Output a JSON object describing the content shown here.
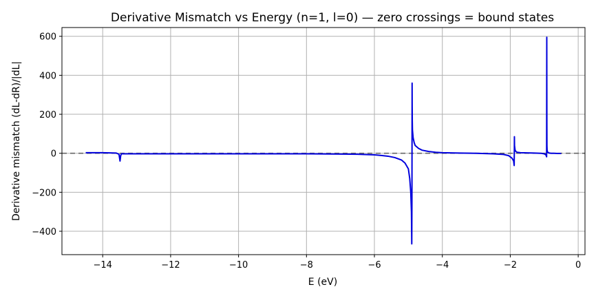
{
  "chart_data": {
    "type": "line",
    "title": "Derivative Mismatch vs Energy (n=1, l=0) — zero crossings = bound states",
    "xlabel": "E (eV)",
    "ylabel": "Derivative mismatch (dL-dR)/|dL|",
    "xlim": [
      -15.2,
      0.2
    ],
    "ylim": [
      -520,
      645
    ],
    "xticks": [
      -14,
      -12,
      -10,
      -8,
      -6,
      -4,
      -2,
      0
    ],
    "xtick_labels": [
      "−14",
      "−12",
      "−10",
      "−8",
      "−6",
      "−4",
      "−2",
      "0"
    ],
    "yticks": [
      -400,
      -200,
      0,
      200,
      400,
      600
    ],
    "ytick_labels": [
      "−400",
      "−200",
      "0",
      "200",
      "400",
      "600"
    ],
    "grid": true,
    "reference_line": {
      "y": 0,
      "style": "dashed",
      "color": "#666666"
    },
    "series": [
      {
        "color": "#0000dd",
        "x": [
          -14.5,
          -14.2,
          -14.0,
          -13.8,
          -13.6,
          -13.52,
          -13.49,
          -13.47,
          -13.45,
          -13.4,
          -13.2,
          -13.0,
          -12.0,
          -11.0,
          -10.0,
          -9.0,
          -8.0,
          -7.0,
          -6.5,
          -6.0,
          -5.8,
          -5.6,
          -5.4,
          -5.2,
          -5.1,
          -5.0,
          -4.96,
          -4.93,
          -4.91,
          -4.9,
          -4.895,
          -4.892,
          -4.89,
          -4.888,
          -4.885,
          -4.88,
          -4.86,
          -4.83,
          -4.8,
          -4.7,
          -4.6,
          -4.4,
          -4.2,
          -4.0,
          -3.5,
          -3.0,
          -2.5,
          -2.2,
          -2.05,
          -1.95,
          -1.9,
          -1.885,
          -1.88,
          -1.878,
          -1.875,
          -1.86,
          -1.84,
          -1.8,
          -1.7,
          -1.5,
          -1.3,
          -1.1,
          -1.0,
          -0.95,
          -0.93,
          -0.925,
          -0.922,
          -0.92,
          -0.915,
          -0.9,
          -0.88,
          -0.85,
          -0.8,
          -0.7,
          -0.6,
          -0.5
        ],
        "y": [
          3,
          3,
          3,
          2,
          1,
          -5,
          -40,
          -12,
          -3,
          -3,
          -3,
          -3,
          -3,
          -3,
          -3,
          -3,
          -3,
          -4,
          -5,
          -8,
          -11,
          -15,
          -22,
          -35,
          -50,
          -80,
          -130,
          -200,
          -300,
          -465,
          -250,
          100,
          360,
          250,
          170,
          120,
          80,
          55,
          40,
          25,
          16,
          9,
          5,
          3,
          1,
          0,
          -3,
          -6,
          -12,
          -25,
          -40,
          -63,
          30,
          85,
          40,
          18,
          10,
          5,
          3,
          2,
          1,
          0,
          -3,
          -8,
          -18,
          595,
          150,
          40,
          15,
          6,
          3,
          1,
          0,
          0,
          -1,
          -1
        ]
      }
    ]
  }
}
